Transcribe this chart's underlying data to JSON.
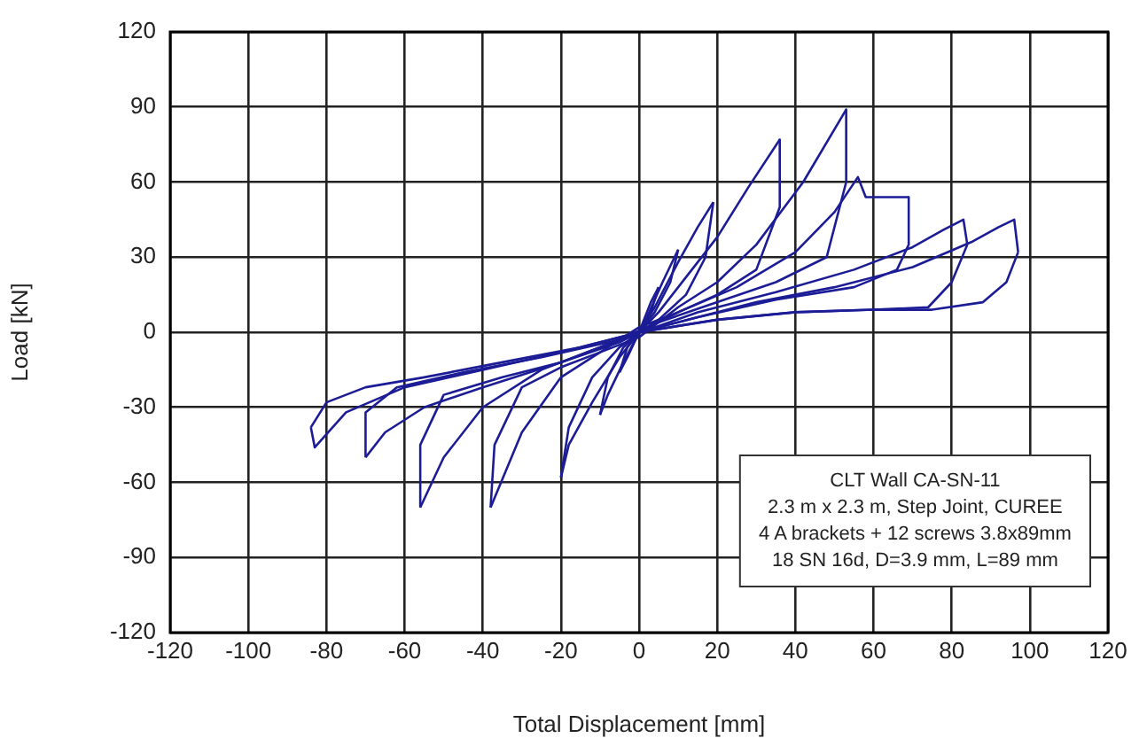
{
  "chart_data": {
    "type": "line",
    "xlabel": "Total Displacement [mm]",
    "ylabel": "Load [kN]",
    "annotations": [
      "CLT Wall CA-SN-11",
      "2.3 m x 2.3 m, Step Joint, CUREE",
      "4 A brackets + 12 screws 3.8x89mm",
      "18 SN 16d, D=3.9 mm, L=89 mm"
    ],
    "xlim": [
      -120,
      120
    ],
    "xticks": [
      -120,
      -100,
      -80,
      -60,
      -40,
      -20,
      0,
      20,
      40,
      60,
      80,
      100,
      120
    ],
    "ylim": [
      -120,
      120
    ],
    "yticks": [
      -120,
      -90,
      -60,
      -30,
      0,
      30,
      60,
      90,
      120
    ],
    "grid": true,
    "legend": false,
    "marker": "none",
    "line_style": "solid",
    "series": [
      {
        "color": "#1c1c96",
        "x": [
          0,
          3,
          5
        ],
        "values": [
          0,
          12,
          18
        ]
      },
      {
        "color": "#1c1c96",
        "x": [
          5,
          3,
          0,
          -3,
          -5
        ],
        "values": [
          18,
          8,
          0,
          -10,
          -16
        ]
      },
      {
        "color": "#1c1c96",
        "x": [
          -5,
          -3,
          0,
          2,
          6,
          10
        ],
        "values": [
          -16,
          -6,
          0,
          6,
          20,
          33
        ]
      },
      {
        "color": "#1c1c96",
        "x": [
          10,
          8,
          4,
          0,
          -4,
          -8,
          -10
        ],
        "values": [
          33,
          20,
          8,
          0,
          -12,
          -25,
          -33
        ]
      },
      {
        "color": "#1c1c96",
        "x": [
          -10,
          -8,
          -4,
          0,
          4,
          10,
          15,
          19
        ],
        "values": [
          -33,
          -18,
          -6,
          0,
          10,
          28,
          42,
          52
        ]
      },
      {
        "color": "#1c1c96",
        "x": [
          19,
          17,
          12,
          5,
          0,
          -5,
          -12,
          -18,
          -20
        ],
        "values": [
          52,
          30,
          15,
          5,
          0,
          -10,
          -28,
          -45,
          -58
        ]
      },
      {
        "color": "#1c1c96",
        "x": [
          -20,
          -18,
          -12,
          -5,
          0,
          5,
          12,
          20,
          28,
          36
        ],
        "values": [
          -58,
          -38,
          -18,
          -6,
          0,
          8,
          22,
          38,
          58,
          77
        ]
      },
      {
        "color": "#1c1c96",
        "x": [
          36,
          36,
          30,
          20,
          10,
          0,
          -10,
          -20,
          -30,
          -38
        ],
        "values": [
          77,
          50,
          25,
          15,
          8,
          2,
          -8,
          -18,
          -40,
          -70
        ]
      },
      {
        "color": "#1c1c96",
        "x": [
          -38,
          -37,
          -30,
          -20,
          -10,
          0,
          10,
          20,
          30,
          42,
          53
        ],
        "values": [
          -70,
          -45,
          -22,
          -14,
          -8,
          -2,
          10,
          20,
          35,
          60,
          89
        ]
      },
      {
        "color": "#1c1c96",
        "x": [
          53,
          53,
          48,
          35,
          20,
          5,
          -10,
          -25,
          -40,
          -50,
          -56
        ],
        "values": [
          89,
          60,
          30,
          20,
          12,
          4,
          -6,
          -15,
          -30,
          -50,
          -70
        ]
      },
      {
        "color": "#1c1c96",
        "x": [
          -56,
          -56,
          -50,
          -35,
          -20,
          -5,
          10,
          25,
          40,
          50,
          56,
          58,
          69
        ],
        "values": [
          -70,
          -45,
          -25,
          -18,
          -12,
          -4,
          8,
          18,
          32,
          48,
          62,
          54,
          54
        ]
      },
      {
        "color": "#1c1c96",
        "x": [
          69,
          69,
          66,
          55,
          35,
          15,
          0,
          -20,
          -40,
          -55,
          -65,
          -70
        ],
        "values": [
          54,
          35,
          25,
          18,
          13,
          6,
          0,
          -12,
          -22,
          -30,
          -40,
          -50
        ]
      },
      {
        "color": "#1c1c96",
        "x": [
          -70,
          -70,
          -62,
          -45,
          -25,
          -5,
          15,
          35,
          55,
          70,
          78,
          83,
          84
        ],
        "values": [
          -50,
          -32,
          -22,
          -16,
          -10,
          -3,
          8,
          16,
          25,
          34,
          41,
          45,
          35
        ]
      },
      {
        "color": "#1c1c96",
        "x": [
          84,
          80,
          74,
          60,
          40,
          20,
          0,
          -20,
          -40,
          -60,
          -75,
          -83,
          -84
        ],
        "values": [
          35,
          20,
          10,
          9,
          8,
          5,
          0,
          -8,
          -15,
          -22,
          -32,
          -46,
          -38
        ]
      },
      {
        "color": "#1c1c96",
        "x": [
          -84,
          -80,
          -70,
          -55,
          -35,
          -15,
          10,
          30,
          50,
          70,
          85,
          92,
          96,
          97
        ],
        "values": [
          -38,
          -28,
          -22,
          -18,
          -12,
          -6,
          4,
          12,
          18,
          26,
          36,
          42,
          45,
          32
        ]
      },
      {
        "color": "#1c1c96",
        "x": [
          97,
          94,
          88,
          75,
          60,
          40,
          20,
          0
        ],
        "values": [
          32,
          20,
          12,
          9,
          9,
          8,
          5,
          0
        ]
      }
    ]
  }
}
